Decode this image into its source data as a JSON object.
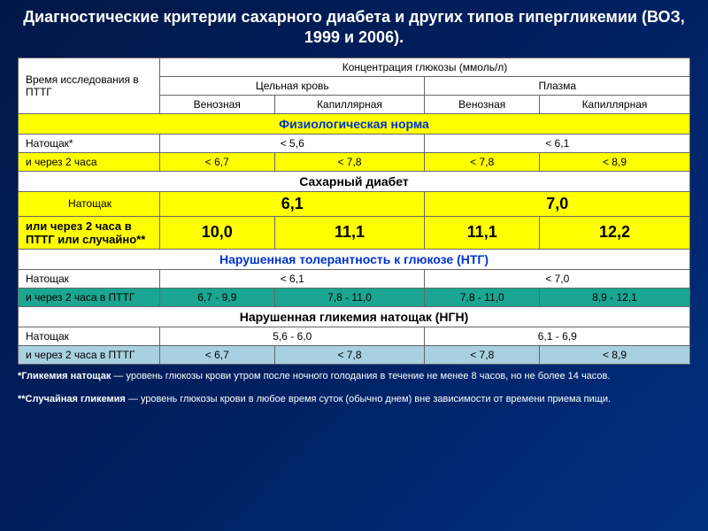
{
  "title": "Диагностические критерии сахарного диабета и других типов гипергликемии (ВОЗ, 1999 и 2006).",
  "hdr": {
    "time_col": "Время    исследования в ПТТГ",
    "conc": "Концентрация глюкозы (ммоль/л)",
    "whole": "Цельная кровь",
    "plasma": "Плазма",
    "venous": "Венозная",
    "capillary": "Капиллярная"
  },
  "sections": {
    "phys_norm": "Физиологическая норма",
    "diabetes": "Сахарный диабет",
    "ntg": "Нарушенная толерантность к глюкозе (НТГ)",
    "ngn": "Нарушенная гликемия натощак (НГН)"
  },
  "labels": {
    "fasting": "Натощак*",
    "fasting_plain": "Натощак",
    "after2h": "и через 2 часа",
    "after2h_pttg": "и через 2 часа в ПТТГ",
    "or2h": "или через 2 часа в ПТТГ или случайно**"
  },
  "phys": {
    "fast_whole": "< 5,6",
    "fast_plasma": "< 6,1",
    "h2_v": "< 6,7",
    "h2_c": "< 7,8",
    "h2_pv": "< 7,8",
    "h2_pc": "< 8,9"
  },
  "diab": {
    "fast_whole": "6,1",
    "fast_plasma": "7,0",
    "h2_v": "10,0",
    "h2_c": "11,1",
    "h2_pv": "11,1",
    "h2_pc": "12,2"
  },
  "ntg": {
    "fast_whole": "< 6,1",
    "fast_plasma": "< 7,0",
    "h2_v": "6,7 - 9,9",
    "h2_c": "7,8 - 11,0",
    "h2_pv": "7,8 - 11,0",
    "h2_pc": "8,9 - 12,1"
  },
  "ngn": {
    "fast_whole": "5,6 - 6,0",
    "fast_plasma": "6,1 - 6,9",
    "h2_v": "< 6,7",
    "h2_c": "< 7,8",
    "h2_pv": "< 7,8",
    "h2_pc": "< 8,9"
  },
  "footnotes": {
    "f1_label": "*Гликемия натощак",
    "f1_text": " — уровень глюкозы крови утром после ночного голодания в течение не менее 8 часов, но не более 14 часов.",
    "f2_label": "**Случайная гликемия",
    "f2_text": " — уровень глюкозы крови в любое время суток (обычно днем) вне зависимости от времени приема пищи."
  },
  "colors": {
    "bg_dark": "#002060",
    "yellow": "#ffff00",
    "teal": "#1aa692",
    "lblue": "#a8d0e0",
    "blue_text": "#0033cc"
  }
}
